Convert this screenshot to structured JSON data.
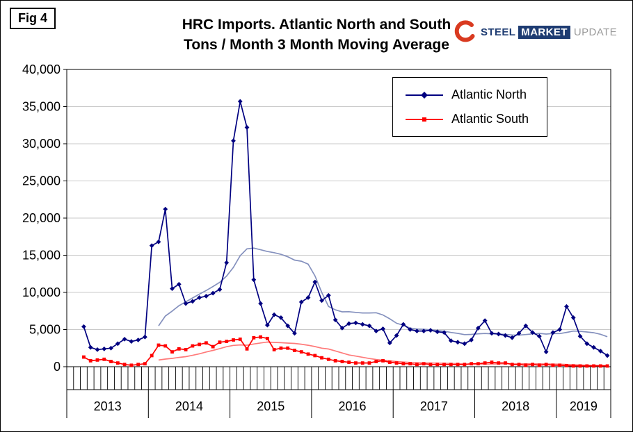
{
  "figure_label": "Fig 4",
  "logo": {
    "word1": "STEEL",
    "word2": "MARKET",
    "word3": "UPDATE"
  },
  "chart_data": {
    "type": "line",
    "title": "HRC Imports. Atlantic North and South",
    "subtitle": "Tons / Month 3 Month Moving Average",
    "xlabel": "",
    "ylabel": "",
    "ylim": [
      0,
      40000
    ],
    "ytick_step": 5000,
    "ytick_labels": [
      "0",
      "5,000",
      "10,000",
      "15,000",
      "20,000",
      "25,000",
      "30,000",
      "35,000",
      "40,000"
    ],
    "grid": "horizontal",
    "legend_position": "top-right-inside",
    "moving_average_window": 12,
    "years": [
      {
        "label": "2013",
        "months": 12
      },
      {
        "label": "2014",
        "months": 12
      },
      {
        "label": "2015",
        "months": 12
      },
      {
        "label": "2016",
        "months": 12
      },
      {
        "label": "2017",
        "months": 12
      },
      {
        "label": "2018",
        "months": 12
      },
      {
        "label": "2019",
        "months": 8
      }
    ],
    "series": [
      {
        "name": "Atlantic North",
        "color": "#000080",
        "marker": "diamond",
        "values": [
          null,
          null,
          5400,
          2600,
          2300,
          2400,
          2500,
          3100,
          3700,
          3400,
          3600,
          4000,
          16300,
          16800,
          21200,
          10500,
          11100,
          8500,
          8800,
          9300,
          9500,
          9900,
          10400,
          14000,
          30400,
          35700,
          32200,
          11700,
          8500,
          5600,
          7000,
          6600,
          5500,
          4500,
          8700,
          9300,
          11400,
          8900,
          9600,
          6300,
          5200,
          5800,
          5900,
          5700,
          5500,
          4800,
          5100,
          3200,
          4200,
          5700,
          5000,
          4800,
          4800,
          4900,
          4700,
          4600,
          3500,
          3300,
          3100,
          3600,
          5200,
          6200,
          4500,
          4400,
          4200,
          3900,
          4500,
          5500,
          4600,
          4100,
          2000,
          4600,
          5000,
          8100,
          6600,
          4100,
          3100,
          2600,
          2100,
          1500
        ]
      },
      {
        "name": "Atlantic South",
        "color": "#FF0000",
        "marker": "square",
        "values": [
          null,
          null,
          1300,
          800,
          900,
          1000,
          700,
          500,
          300,
          200,
          300,
          400,
          1500,
          2900,
          2800,
          2000,
          2400,
          2300,
          2800,
          3000,
          3200,
          2700,
          3300,
          3400,
          3600,
          3700,
          2400,
          3900,
          4000,
          3800,
          2300,
          2500,
          2500,
          2200,
          2000,
          1700,
          1500,
          1200,
          1000,
          800,
          700,
          600,
          500,
          500,
          500,
          700,
          800,
          600,
          500,
          400,
          400,
          300,
          400,
          300,
          300,
          300,
          300,
          300,
          300,
          400,
          400,
          500,
          600,
          500,
          500,
          300,
          300,
          200,
          300,
          200,
          300,
          200,
          200,
          150,
          100,
          100,
          100,
          100,
          100,
          100
        ]
      },
      {
        "name": "Atlantic North trend",
        "color": "#8591BE",
        "marker": "none",
        "moving_average_of": 0
      },
      {
        "name": "Atlantic South trend",
        "color": "#FF7A7A",
        "marker": "none",
        "moving_average_of": 1
      }
    ]
  }
}
